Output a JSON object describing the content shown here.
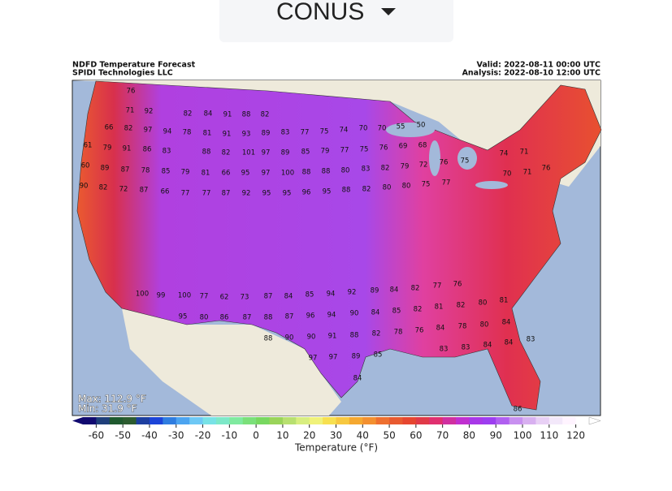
{
  "dropdown": {
    "label": "CONUS"
  },
  "map": {
    "title": "NDFD Temperature Forecast",
    "source": "SPIDI Technologies LLC",
    "valid": "Valid: 2022-08-11 00:00 UTC",
    "analysis": "Analysis: 2022-08-10 12:00 UTC",
    "max": "Max: 112.9 °F",
    "min": "Min: 31.9 °F",
    "labels": [
      76,
      71,
      92,
      82,
      84,
      91,
      88,
      82,
      66,
      82,
      97,
      94,
      78,
      81,
      91,
      93,
      89,
      83,
      77,
      75,
      74,
      70,
      70,
      55,
      50,
      61,
      79,
      91,
      86,
      83,
      88,
      82,
      101,
      97,
      89,
      85,
      79,
      77,
      75,
      76,
      69,
      68,
      60,
      89,
      87,
      78,
      85,
      79,
      81,
      66,
      95,
      97,
      100,
      88,
      88,
      80,
      83,
      82,
      79,
      72,
      76,
      75,
      74,
      71,
      90,
      82,
      72,
      87,
      66,
      77,
      77,
      87,
      92,
      95,
      95,
      96,
      95,
      88,
      82,
      80,
      80,
      75,
      77,
      70,
      71,
      76,
      100,
      99,
      100,
      77,
      62,
      73,
      87,
      84,
      85,
      94,
      92,
      89,
      84,
      82,
      77,
      76,
      95,
      80,
      86,
      87,
      88,
      87,
      96,
      94,
      90,
      84,
      85,
      82,
      81,
      82,
      80,
      81,
      88,
      90,
      90,
      91,
      88,
      82,
      78,
      76,
      84,
      78,
      80,
      84,
      97,
      97,
      89,
      85,
      83,
      83,
      84,
      84,
      83,
      84,
      86
    ]
  },
  "colorbar": {
    "label": "Temperature (°F)",
    "lim": [
      -65,
      125
    ],
    "ticks": [
      -60,
      -50,
      -40,
      -30,
      -20,
      -10,
      0,
      10,
      20,
      30,
      40,
      50,
      60,
      70,
      80,
      90,
      100,
      110,
      120
    ],
    "colors": [
      "#110a70",
      "#1f3f7a",
      "#1f5a2f",
      "#2d5c30",
      "#1d3fa0",
      "#1c44d8",
      "#2f7de0",
      "#4ca4f0",
      "#6ec8f5",
      "#78e2e6",
      "#7de8c8",
      "#80eaa0",
      "#7be07a",
      "#78d860",
      "#9ad45a",
      "#b8e070",
      "#d8ee80",
      "#f0f27a",
      "#f7e050",
      "#f7c840",
      "#f5a830",
      "#f39030",
      "#ee7030",
      "#e85a30",
      "#e64630",
      "#e03a48",
      "#e03070",
      "#d030a0",
      "#c030d0",
      "#a838e8",
      "#9d3ef0",
      "#b060f0",
      "#c890f0",
      "#d8b0f0",
      "#e8d0f5",
      "#f3e8fa",
      "#fff4ff",
      "#ffffff"
    ]
  }
}
